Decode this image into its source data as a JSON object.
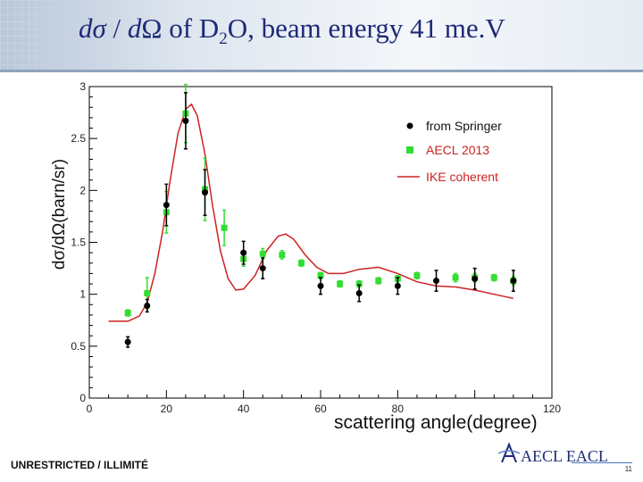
{
  "slide": {
    "title_parts": {
      "d1": "d",
      "sigma": "σ",
      "slash": " / ",
      "d2": "d",
      "omega": "Ω",
      "of": " of D",
      "sub2": "2",
      "rest": "O,  beam energy 41 me.V"
    },
    "footer_classification": "UNRESTRICTED / ILLIMITÉ",
    "page_number": "11",
    "logo_text": "AECL EACL"
  },
  "chart_data": {
    "type": "scatter",
    "xlabel": "scattering angle(degree)",
    "ylabel": "dσ/dΩ(barn/sr)",
    "xlim": [
      0,
      120
    ],
    "ylim": [
      0,
      3
    ],
    "xticks": [
      0,
      20,
      40,
      60,
      80,
      120
    ],
    "xtick_labels": [
      "0",
      "20",
      "40",
      "60",
      "80",
      "120"
    ],
    "yticks": [
      0,
      0.5,
      1,
      1.5,
      2,
      2.5,
      3
    ],
    "ytick_labels": [
      "0",
      "0.5",
      "1",
      "1.5",
      "2",
      "2.5",
      "3"
    ],
    "legend_position": "top-right",
    "series": [
      {
        "name": "from Springer",
        "color": "#000000",
        "marker": "circle",
        "points": [
          {
            "x": 10,
            "y": 0.54,
            "err": 0.05
          },
          {
            "x": 15,
            "y": 0.89,
            "err": 0.06
          },
          {
            "x": 20,
            "y": 1.86,
            "err": 0.2
          },
          {
            "x": 25,
            "y": 2.67,
            "err": 0.27
          },
          {
            "x": 30,
            "y": 1.98,
            "err": 0.22
          },
          {
            "x": 40,
            "y": 1.4,
            "err": 0.11
          },
          {
            "x": 45,
            "y": 1.25,
            "err": 0.1
          },
          {
            "x": 60,
            "y": 1.08,
            "err": 0.08
          },
          {
            "x": 70,
            "y": 1.01,
            "err": 0.08
          },
          {
            "x": 80,
            "y": 1.08,
            "err": 0.08
          },
          {
            "x": 90,
            "y": 1.13,
            "err": 0.1
          },
          {
            "x": 100,
            "y": 1.15,
            "err": 0.1
          },
          {
            "x": 110,
            "y": 1.13,
            "err": 0.1
          }
        ]
      },
      {
        "name": "AECL 2013",
        "color": "#33dd33",
        "marker": "square",
        "points": [
          {
            "x": 10,
            "y": 0.82,
            "err": 0.03
          },
          {
            "x": 15,
            "y": 1.01,
            "err": 0.15
          },
          {
            "x": 20,
            "y": 1.79,
            "err": 0.2
          },
          {
            "x": 25,
            "y": 2.74,
            "err": 0.28
          },
          {
            "x": 30,
            "y": 2.01,
            "err": 0.3
          },
          {
            "x": 35,
            "y": 1.64,
            "err": 0.17
          },
          {
            "x": 40,
            "y": 1.34,
            "err": 0.07
          },
          {
            "x": 45,
            "y": 1.39,
            "err": 0.05
          },
          {
            "x": 50,
            "y": 1.38,
            "err": 0.04
          },
          {
            "x": 55,
            "y": 1.3,
            "err": 0.03
          },
          {
            "x": 60,
            "y": 1.18,
            "err": 0.03
          },
          {
            "x": 65,
            "y": 1.1,
            "err": 0.03
          },
          {
            "x": 70,
            "y": 1.1,
            "err": 0.03
          },
          {
            "x": 75,
            "y": 1.13,
            "err": 0.03
          },
          {
            "x": 80,
            "y": 1.15,
            "err": 0.03
          },
          {
            "x": 85,
            "y": 1.18,
            "err": 0.03
          },
          {
            "x": 95,
            "y": 1.16,
            "err": 0.04
          },
          {
            "x": 100,
            "y": 1.16,
            "err": 0.04
          },
          {
            "x": 105,
            "y": 1.16,
            "err": 0.03
          },
          {
            "x": 110,
            "y": 1.13,
            "err": 0.04
          }
        ]
      },
      {
        "name": "IKE coherent",
        "color": "#cc2222",
        "style": "line",
        "points": [
          {
            "x": 5,
            "y": 0.74
          },
          {
            "x": 10,
            "y": 0.74
          },
          {
            "x": 13,
            "y": 0.79
          },
          {
            "x": 15,
            "y": 0.92
          },
          {
            "x": 17,
            "y": 1.2
          },
          {
            "x": 19,
            "y": 1.6
          },
          {
            "x": 21,
            "y": 2.1
          },
          {
            "x": 23,
            "y": 2.55
          },
          {
            "x": 25,
            "y": 2.78
          },
          {
            "x": 26.5,
            "y": 2.83
          },
          {
            "x": 28,
            "y": 2.72
          },
          {
            "x": 30,
            "y": 2.35
          },
          {
            "x": 32,
            "y": 1.85
          },
          {
            "x": 34,
            "y": 1.42
          },
          {
            "x": 36,
            "y": 1.15
          },
          {
            "x": 38,
            "y": 1.04
          },
          {
            "x": 40,
            "y": 1.05
          },
          {
            "x": 43,
            "y": 1.18
          },
          {
            "x": 46,
            "y": 1.42
          },
          {
            "x": 49,
            "y": 1.56
          },
          {
            "x": 51,
            "y": 1.58
          },
          {
            "x": 53,
            "y": 1.53
          },
          {
            "x": 56,
            "y": 1.38
          },
          {
            "x": 59,
            "y": 1.26
          },
          {
            "x": 62,
            "y": 1.2
          },
          {
            "x": 66,
            "y": 1.2
          },
          {
            "x": 70,
            "y": 1.24
          },
          {
            "x": 75,
            "y": 1.26
          },
          {
            "x": 80,
            "y": 1.2
          },
          {
            "x": 85,
            "y": 1.12
          },
          {
            "x": 90,
            "y": 1.08
          },
          {
            "x": 95,
            "y": 1.07
          },
          {
            "x": 100,
            "y": 1.04
          },
          {
            "x": 105,
            "y": 1.0
          },
          {
            "x": 110,
            "y": 0.96
          }
        ]
      }
    ]
  }
}
